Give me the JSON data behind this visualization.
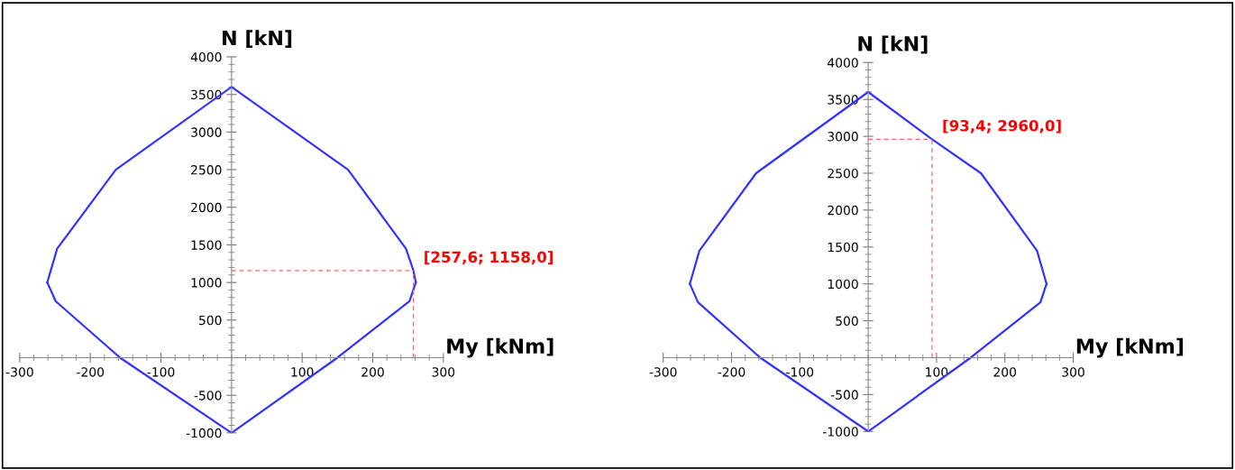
{
  "chart_data": [
    {
      "type": "line",
      "xlabel": "My [kNm]",
      "ylabel": "N [kN]",
      "xlim": [
        -300,
        300
      ],
      "ylim": [
        -1000,
        4000
      ],
      "xticks": [
        -300,
        -200,
        -100,
        100,
        200,
        300
      ],
      "yticks": [
        -1000,
        -500,
        500,
        1000,
        1500,
        2000,
        2500,
        3000,
        3500,
        4000
      ],
      "grid": false,
      "legend": false,
      "marker": "none",
      "line_style": "solid",
      "series": [
        {
          "color": "#3333ff",
          "x": [
            -261,
            -247,
            -164,
            0,
            165,
            247,
            257.6,
            261
          ],
          "values": [
            1000,
            1450,
            2500,
            3600,
            2500,
            1450,
            1158,
            1000
          ]
        },
        {
          "color": "#3333ff",
          "x": [
            -261,
            -249,
            -158,
            0,
            150,
            252,
            261
          ],
          "values": [
            1000,
            750,
            0,
            -1000,
            0,
            750,
            1000
          ]
        }
      ],
      "annotations": [
        {
          "text": "[257,6; 1158,0]",
          "x": 257.6,
          "y": 1158
        }
      ]
    },
    {
      "type": "line",
      "xlabel": "My [kNm]",
      "ylabel": "N [kN]",
      "xlim": [
        -300,
        300
      ],
      "ylim": [
        -1000,
        4000
      ],
      "xticks": [
        -300,
        -200,
        -100,
        100,
        200,
        300
      ],
      "yticks": [
        -1000,
        -500,
        500,
        1000,
        1500,
        2000,
        2500,
        3000,
        3500,
        4000
      ],
      "grid": false,
      "legend": false,
      "marker": "none",
      "line_style": "solid",
      "series": [
        {
          "color": "#3333ff",
          "x": [
            -261,
            -247,
            -164,
            0,
            93.4,
            165,
            247,
            261
          ],
          "values": [
            1000,
            1450,
            2500,
            3600,
            2960,
            2500,
            1450,
            1000
          ]
        },
        {
          "color": "#3333ff",
          "x": [
            -261,
            -249,
            -158,
            0,
            150,
            252,
            261
          ],
          "values": [
            1000,
            750,
            0,
            -1000,
            0,
            750,
            1000
          ]
        }
      ],
      "annotations": [
        {
          "text": "[93,4; 2960,0]",
          "x": 93.4,
          "y": 2960
        }
      ]
    }
  ]
}
